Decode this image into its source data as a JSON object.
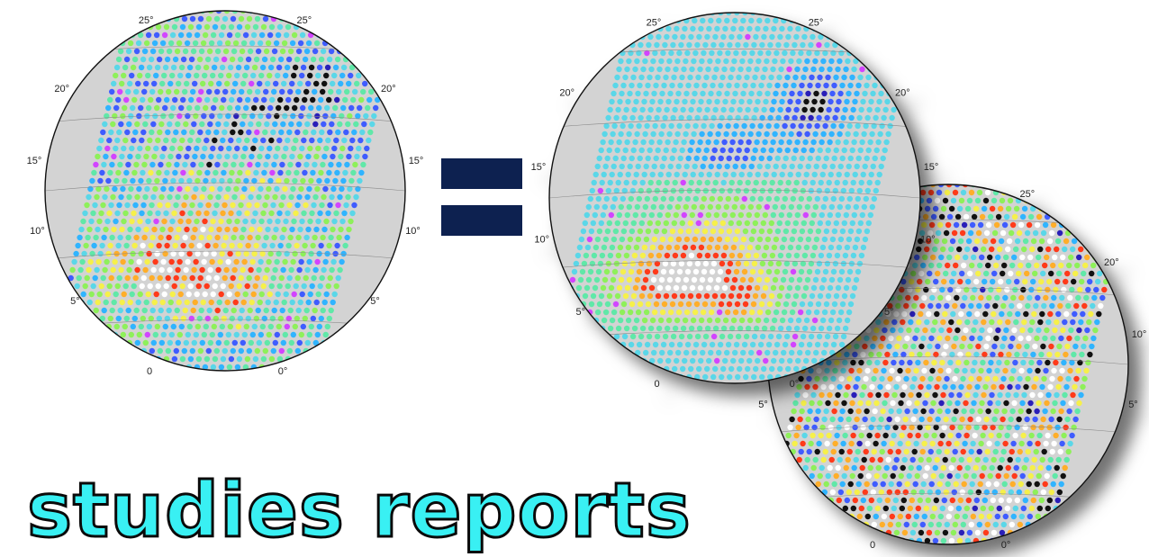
{
  "caption": "studies reports",
  "colors": {
    "caption_fill": "#39f0f3",
    "caption_stroke": "#0a0a0a",
    "equals_sign": "#0d2150",
    "globe_background": "#d3d3d3",
    "palette": [
      "#2a1fb8",
      "#3f5cff",
      "#30b4ff",
      "#5ad7e8",
      "#60e8a8",
      "#8ef05a",
      "#f6f04a",
      "#ffae2a",
      "#ff3a1a",
      "#ffffff",
      "#111111",
      "#d244ff"
    ]
  },
  "maps": [
    {
      "id": "observed",
      "lat_labels": [
        "25°",
        "20°",
        "15°",
        "10°",
        "5°"
      ],
      "lon_labels": [
        "0",
        "0°"
      ]
    },
    {
      "id": "smooth",
      "lat_labels": [
        "25°",
        "20°",
        "15°",
        "10°",
        "5°"
      ],
      "lon_labels": [
        "0",
        "0°"
      ]
    },
    {
      "id": "residual",
      "lat_labels": [
        "25°",
        "20°",
        "10°",
        "5°"
      ],
      "lon_labels": [
        "0",
        "0°"
      ]
    }
  ]
}
